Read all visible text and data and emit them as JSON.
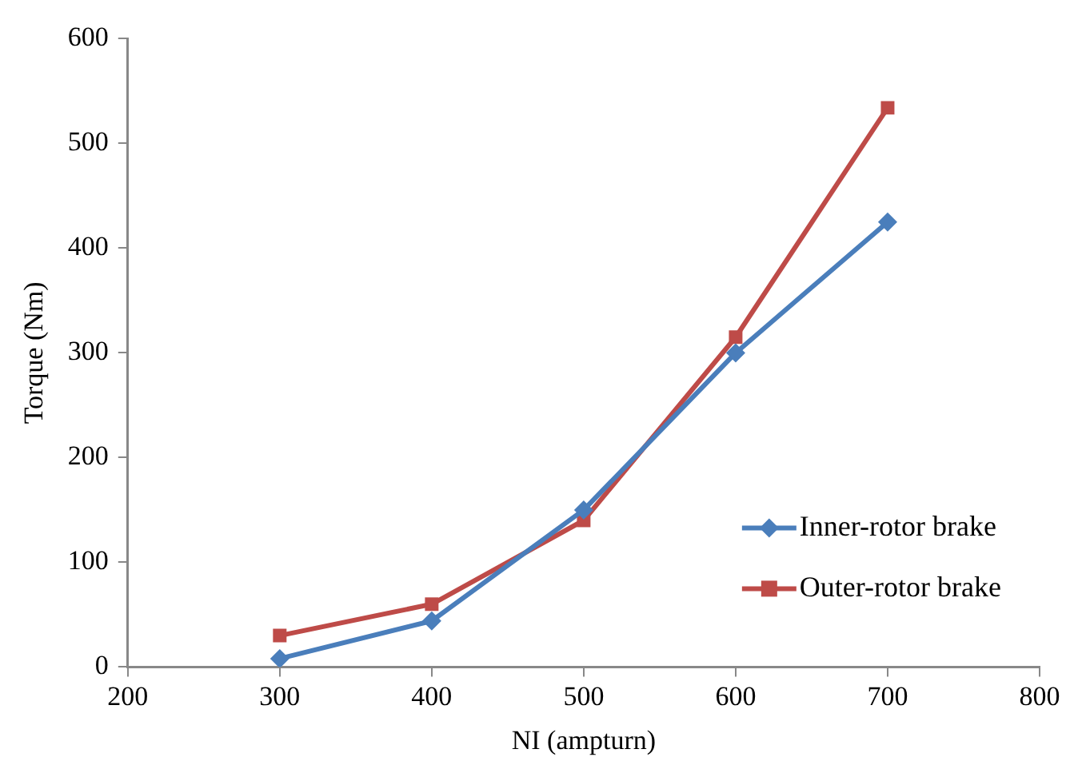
{
  "chart_data": {
    "type": "line",
    "xlabel": "NI (ampturn)",
    "ylabel": "Torque (Nm)",
    "x": [
      300,
      400,
      500,
      600,
      700
    ],
    "series": [
      {
        "name": "Inner-rotor brake",
        "color": "#4a7ebb",
        "marker": "diamond",
        "values": [
          8,
          44,
          150,
          300,
          425
        ]
      },
      {
        "name": "Outer-rotor brake",
        "color": "#be4b48",
        "marker": "square",
        "values": [
          30,
          60,
          140,
          315,
          534
        ]
      }
    ],
    "xlim": [
      200,
      800
    ],
    "xticks": [
      200,
      300,
      400,
      500,
      600,
      700,
      800
    ],
    "ylim": [
      0,
      600
    ],
    "yticks": [
      0,
      100,
      200,
      300,
      400,
      500,
      600
    ],
    "grid": false,
    "legend": "bottom right",
    "line_style": "solid"
  }
}
